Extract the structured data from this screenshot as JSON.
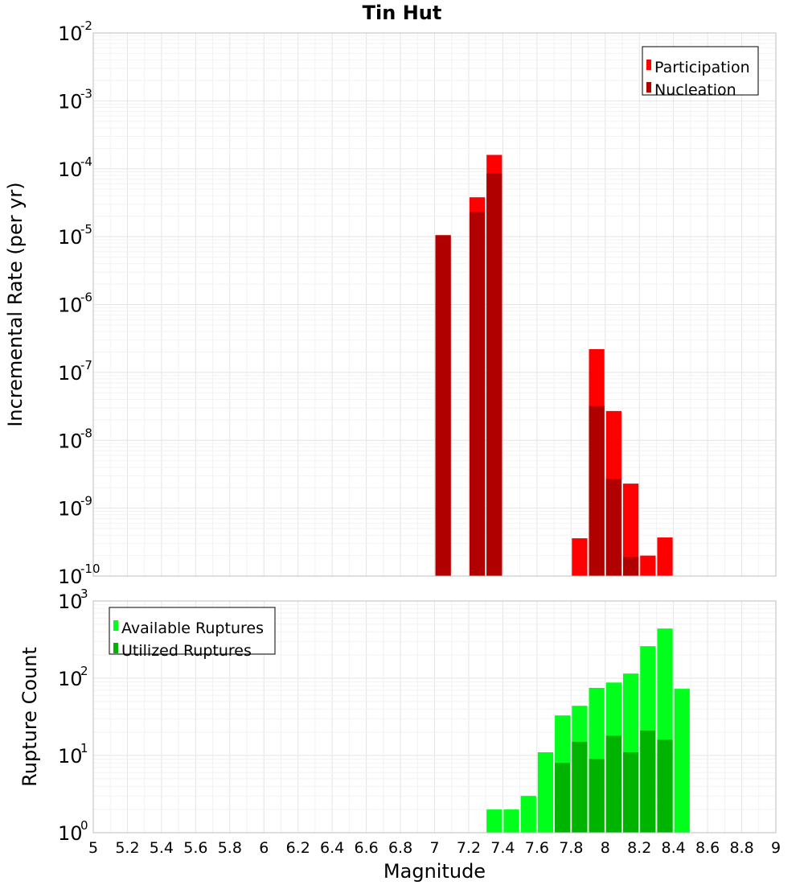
{
  "colors": {
    "participation": "#ff0000",
    "nucleation": "#b00000",
    "available": "#00ff1a",
    "utilized": "#00b300"
  },
  "chart_data": [
    {
      "type": "bar",
      "title": "Tin Hut",
      "xlabel": "",
      "ylabel": "Incremental Rate (per yr)",
      "yscale": "log",
      "ylim_exp": [
        -10,
        -2
      ],
      "xlim": [
        5,
        9
      ],
      "legend_position": "top-right",
      "bin_width": 0.1,
      "series": [
        {
          "name": "Participation",
          "x": [
            7.05,
            7.25,
            7.35,
            7.85,
            7.95,
            8.05,
            8.15,
            8.25,
            8.35
          ],
          "values": [
            1.05e-05,
            3.8e-05,
            0.00016,
            3.6e-10,
            2.2e-07,
            2.7e-08,
            2.3e-09,
            2e-10,
            3.7e-10
          ]
        },
        {
          "name": "Nucleation",
          "x": [
            7.05,
            7.25,
            7.35,
            7.95,
            8.05,
            8.15
          ],
          "values": [
            1.05e-05,
            2.3e-05,
            8.5e-05,
            3.2e-08,
            2.7e-09,
            1.9e-10
          ]
        }
      ]
    },
    {
      "type": "bar",
      "title": "",
      "xlabel": "Magnitude",
      "ylabel": "Rupture Count",
      "yscale": "log",
      "ylim_exp": [
        0,
        3
      ],
      "xlim": [
        5,
        9
      ],
      "xticks": [
        "5",
        "5.2",
        "5.4",
        "5.6",
        "5.8",
        "6",
        "6.2",
        "6.4",
        "6.6",
        "6.8",
        "7",
        "7.2",
        "7.4",
        "7.6",
        "7.8",
        "8",
        "8.2",
        "8.4",
        "8.6",
        "8.8",
        "9"
      ],
      "legend_position": "top-left",
      "bin_width": 0.1,
      "series": [
        {
          "name": "Available Ruptures",
          "x": [
            7.05,
            7.25,
            7.35,
            7.45,
            7.55,
            7.65,
            7.75,
            7.85,
            7.95,
            8.05,
            8.15,
            8.25,
            8.35,
            8.45
          ],
          "values": [
            1,
            1,
            2,
            2,
            3,
            11,
            33,
            44,
            75,
            88,
            115,
            260,
            440,
            73
          ]
        },
        {
          "name": "Utilized Ruptures",
          "x": [
            7.05,
            7.25,
            7.35,
            7.55,
            7.75,
            7.85,
            7.95,
            8.05,
            8.15,
            8.25,
            8.35,
            8.45
          ],
          "values": [
            1,
            1,
            1,
            1,
            8,
            15,
            9,
            18,
            11,
            21,
            16,
            1
          ]
        }
      ]
    }
  ]
}
